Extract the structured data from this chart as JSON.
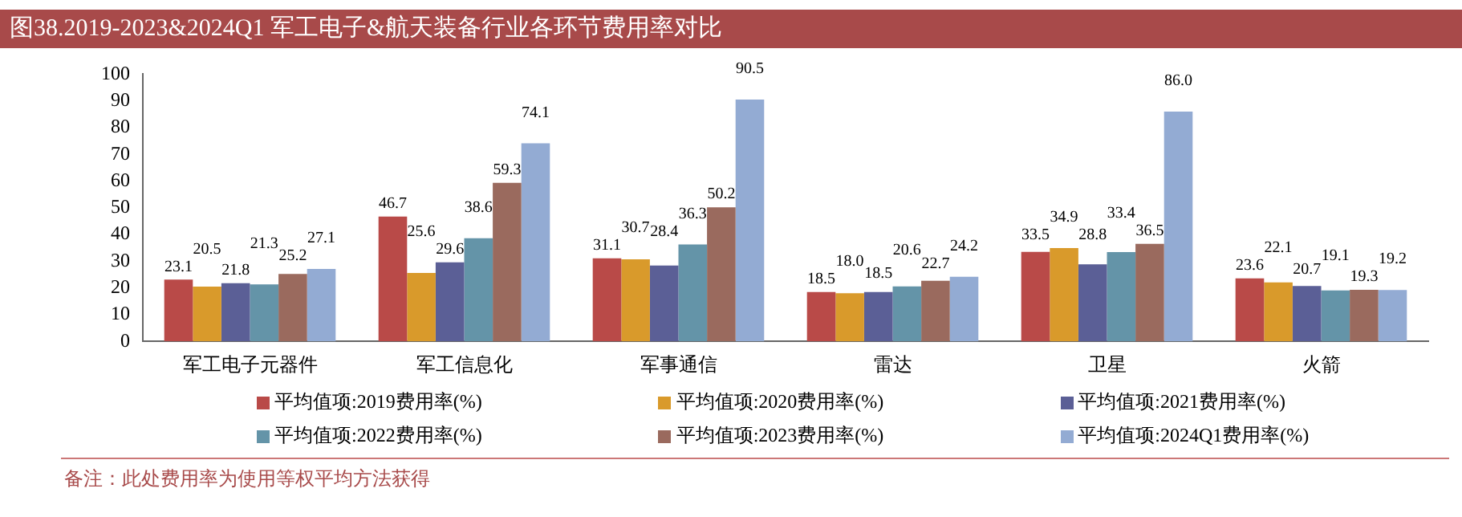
{
  "chart_data": {
    "type": "bar",
    "title": "图38.2019-2023&2024Q1 军工电子&航天装备行业各环节费用率对比",
    "categories": [
      "军工电子元器件",
      "军工信息化",
      "军事通信",
      "雷达",
      "卫星",
      "火箭"
    ],
    "series": [
      {
        "name": "平均值项:2019费用率(%)",
        "color": "#b94a48",
        "values": [
          23.1,
          46.7,
          31.1,
          18.5,
          33.5,
          23.6
        ],
        "value_labels": [
          "23.1",
          "46.7",
          "31.1",
          "18.5",
          "33.5",
          "23.6"
        ]
      },
      {
        "name": "平均值项:2020费用率(%)",
        "color": "#d99a2b",
        "values": [
          20.5,
          25.6,
          30.7,
          18.0,
          34.9,
          22.1
        ],
        "value_labels": [
          "20.5",
          "25.6",
          "30.7",
          "18.0",
          "34.9",
          "22.1"
        ]
      },
      {
        "name": "平均值项:2021费用率(%)",
        "color": "#5b5f96",
        "values": [
          21.8,
          29.6,
          28.4,
          18.5,
          28.8,
          20.7
        ],
        "value_labels": [
          "21.8",
          "29.6",
          "28.4",
          "18.5",
          "28.8",
          "20.7"
        ]
      },
      {
        "name": "平均值项:2022费用率(%)",
        "color": "#6494a8",
        "values": [
          21.3,
          38.6,
          36.3,
          20.6,
          33.4,
          19.1
        ],
        "value_labels": [
          "21.3",
          "38.6",
          "36.3",
          "20.6",
          "33.4",
          "19.1"
        ]
      },
      {
        "name": "平均值项:2023费用率(%)",
        "color": "#9a6a5e",
        "values": [
          25.2,
          59.3,
          50.2,
          22.7,
          36.5,
          19.3
        ],
        "value_labels": [
          "25.2",
          "59.3",
          "50.2",
          "22.7",
          "36.5",
          "19.3"
        ]
      },
      {
        "name": "平均值项:2024Q1费用率(%)",
        "color": "#93abd3",
        "values": [
          27.1,
          74.1,
          90.5,
          24.2,
          86.0,
          19.2
        ],
        "value_labels": [
          "27.1",
          "74.1",
          "90.5",
          "24.2",
          "86.0",
          "19.2"
        ]
      }
    ],
    "ylim": [
      0,
      100
    ],
    "yticks": [
      0,
      10,
      20,
      30,
      40,
      50,
      60,
      70,
      80,
      90,
      100
    ],
    "grid": false,
    "legend": "bottom",
    "annotations": [
      "备注：此处费用率为使用等权平均方法获得"
    ]
  }
}
